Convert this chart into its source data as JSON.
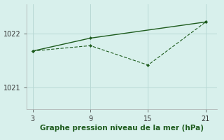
{
  "line1_x": [
    3,
    9,
    21
  ],
  "line1_y": [
    1021.68,
    1021.92,
    1022.22
  ],
  "line2_x": [
    3,
    9,
    15,
    21
  ],
  "line2_y": [
    1021.68,
    1021.78,
    1021.42,
    1022.22
  ],
  "line_color": "#1e5c1e",
  "bg_color": "#d8f0ec",
  "grid_color": "#b8d8d4",
  "xlabel": "Graphe pression niveau de la mer (hPa)",
  "xticks": [
    3,
    9,
    15,
    21
  ],
  "ytick_vals": [
    1021,
    1022
  ],
  "xlim": [
    2.4,
    22.2
  ],
  "ylim": [
    1020.6,
    1022.55
  ],
  "xlabel_fontsize": 7.5,
  "tick_fontsize": 7.0
}
